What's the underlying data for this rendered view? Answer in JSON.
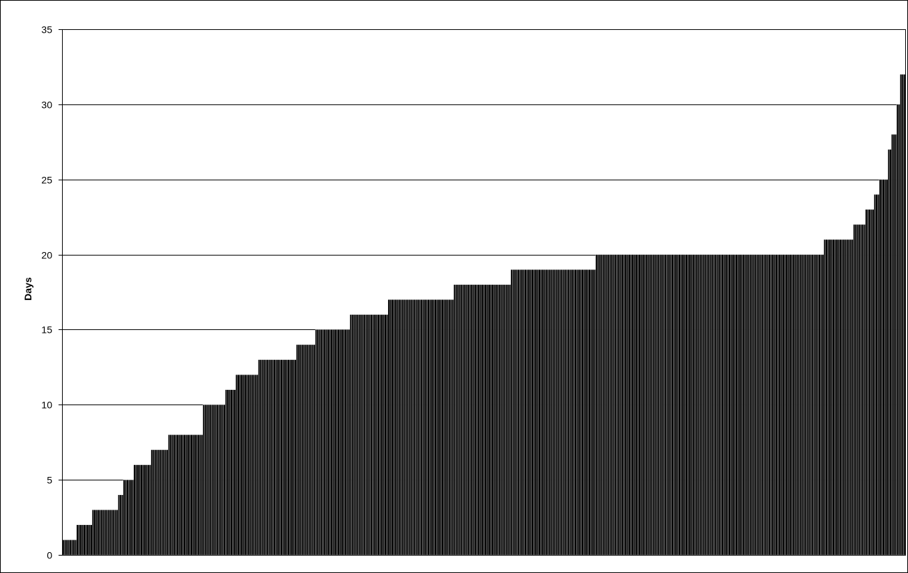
{
  "chart_data": {
    "type": "bar",
    "title": "",
    "xlabel": "",
    "ylabel": "Days",
    "ylim": [
      0,
      35
    ],
    "yticks": [
      0,
      5,
      10,
      15,
      20,
      25,
      30,
      35
    ],
    "grid": true,
    "legend": "none",
    "colors": {
      "bar": "#000000",
      "bar_gap": "#ffffff",
      "grid": "#000000",
      "frame": "#000000"
    },
    "values": [
      1,
      1,
      1,
      1,
      1,
      1,
      1,
      1,
      2,
      2,
      2,
      2,
      2,
      2,
      2,
      2,
      2,
      3,
      3,
      3,
      3,
      3,
      3,
      3,
      3,
      3,
      3,
      3,
      3,
      3,
      3,
      3,
      4,
      4,
      4,
      5,
      5,
      5,
      5,
      5,
      5,
      6,
      6,
      6,
      6,
      6,
      6,
      6,
      6,
      6,
      6,
      7,
      7,
      7,
      7,
      7,
      7,
      7,
      7,
      7,
      7,
      8,
      8,
      8,
      8,
      8,
      8,
      8,
      8,
      8,
      8,
      8,
      8,
      8,
      8,
      8,
      8,
      8,
      8,
      8,
      8,
      10,
      10,
      10,
      10,
      10,
      10,
      10,
      10,
      10,
      10,
      10,
      10,
      10,
      11,
      11,
      11,
      11,
      11,
      11,
      12,
      12,
      12,
      12,
      12,
      12,
      12,
      12,
      12,
      12,
      12,
      12,
      12,
      13,
      13,
      13,
      13,
      13,
      13,
      13,
      13,
      13,
      13,
      13,
      13,
      13,
      13,
      13,
      13,
      13,
      13,
      13,
      13,
      13,
      13,
      14,
      14,
      14,
      14,
      14,
      14,
      14,
      14,
      14,
      14,
      14,
      15,
      15,
      15,
      15,
      15,
      15,
      15,
      15,
      15,
      15,
      15,
      15,
      15,
      15,
      15,
      15,
      15,
      15,
      15,
      15,
      16,
      16,
      16,
      16,
      16,
      16,
      16,
      16,
      16,
      16,
      16,
      16,
      16,
      16,
      16,
      16,
      16,
      16,
      16,
      16,
      16,
      16,
      17,
      17,
      17,
      17,
      17,
      17,
      17,
      17,
      17,
      17,
      17,
      17,
      17,
      17,
      17,
      17,
      17,
      17,
      17,
      17,
      17,
      17,
      17,
      17,
      17,
      17,
      17,
      17,
      17,
      17,
      17,
      17,
      17,
      17,
      17,
      17,
      17,
      17,
      18,
      18,
      18,
      18,
      18,
      18,
      18,
      18,
      18,
      18,
      18,
      18,
      18,
      18,
      18,
      18,
      18,
      18,
      18,
      18,
      18,
      18,
      18,
      18,
      18,
      18,
      18,
      18,
      18,
      18,
      18,
      18,
      18,
      19,
      19,
      19,
      19,
      19,
      19,
      19,
      19,
      19,
      19,
      19,
      19,
      19,
      19,
      19,
      19,
      19,
      19,
      19,
      19,
      19,
      19,
      19,
      19,
      19,
      19,
      19,
      19,
      19,
      19,
      19,
      19,
      19,
      19,
      19,
      19,
      19,
      19,
      19,
      19,
      19,
      19,
      19,
      19,
      19,
      19,
      19,
      19,
      19,
      20,
      20,
      20,
      20,
      20,
      20,
      20,
      20,
      20,
      20,
      20,
      20,
      20,
      20,
      20,
      20,
      20,
      20,
      20,
      20,
      20,
      20,
      20,
      20,
      20,
      20,
      20,
      20,
      20,
      20,
      20,
      20,
      20,
      20,
      20,
      20,
      20,
      20,
      20,
      20,
      20,
      20,
      20,
      20,
      20,
      20,
      20,
      20,
      20,
      20,
      20,
      20,
      20,
      20,
      20,
      20,
      20,
      20,
      20,
      20,
      20,
      20,
      20,
      20,
      20,
      20,
      20,
      20,
      20,
      20,
      20,
      20,
      20,
      20,
      20,
      20,
      20,
      20,
      20,
      20,
      20,
      20,
      20,
      20,
      20,
      20,
      20,
      20,
      20,
      20,
      20,
      20,
      20,
      20,
      20,
      20,
      20,
      20,
      20,
      20,
      20,
      20,
      20,
      20,
      20,
      20,
      20,
      20,
      20,
      20,
      20,
      20,
      20,
      20,
      20,
      20,
      20,
      20,
      20,
      20,
      20,
      20,
      20,
      20,
      20,
      20,
      20,
      20,
      20,
      20,
      20,
      20,
      21,
      21,
      21,
      21,
      21,
      21,
      21,
      21,
      21,
      21,
      21,
      21,
      21,
      21,
      21,
      21,
      21,
      22,
      22,
      22,
      22,
      22,
      22,
      22,
      23,
      23,
      23,
      23,
      23,
      24,
      24,
      24,
      25,
      25,
      25,
      25,
      25,
      27,
      27,
      28,
      28,
      28,
      30,
      30,
      32,
      32,
      32
    ]
  }
}
